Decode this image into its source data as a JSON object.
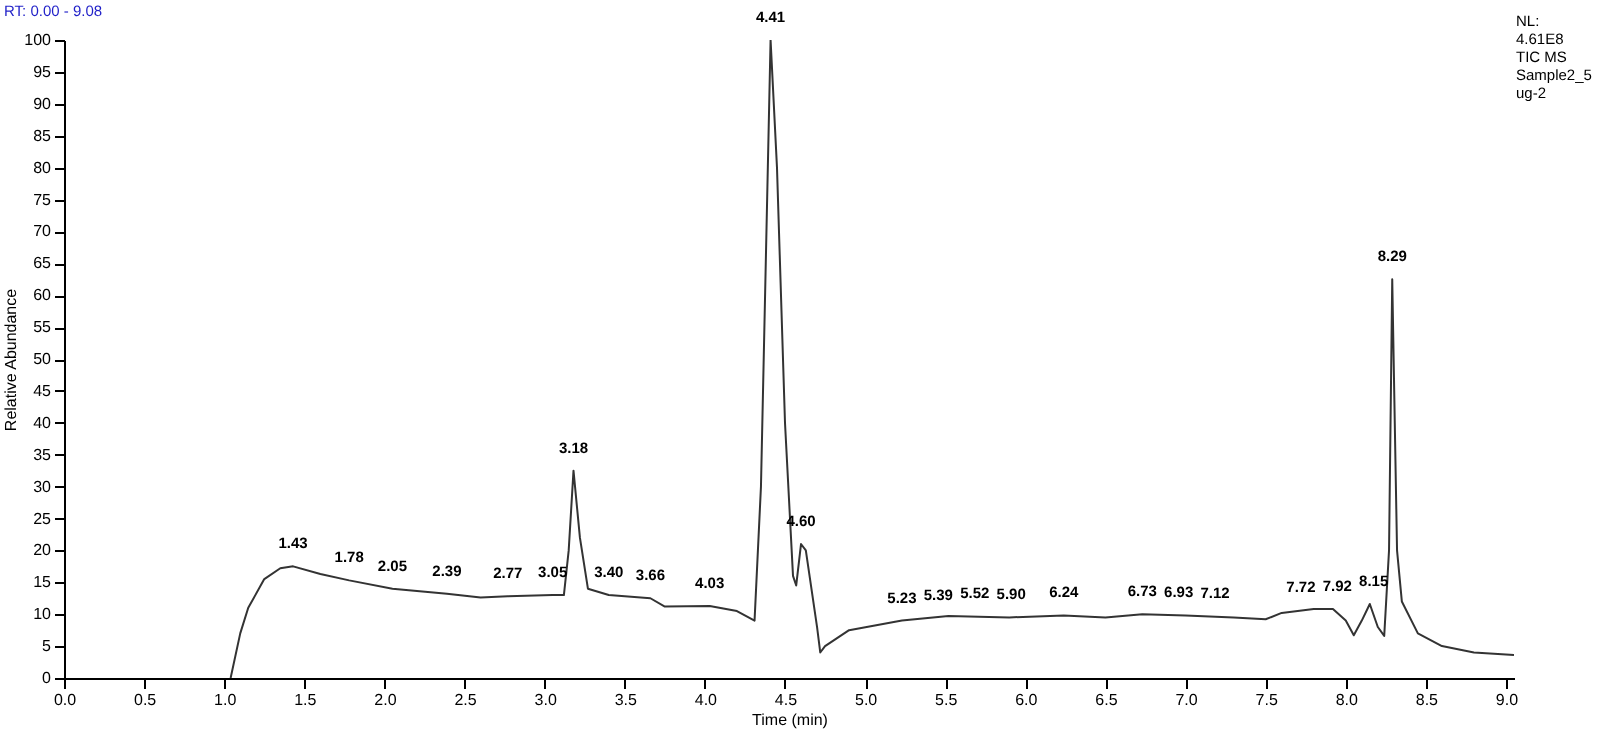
{
  "chart_data": {
    "type": "line",
    "xlabel": "Time (min)",
    "ylabel": "Relative Abundance",
    "x": [
      1.04,
      1.1,
      1.15,
      1.25,
      1.35,
      1.43,
      1.6,
      1.78,
      2.05,
      2.39,
      2.6,
      2.77,
      3.05,
      3.12,
      3.15,
      3.18,
      3.22,
      3.27,
      3.4,
      3.66,
      3.75,
      4.03,
      4.2,
      4.31,
      4.35,
      4.41,
      4.45,
      4.5,
      4.55,
      4.57,
      4.6,
      4.63,
      4.7,
      4.72,
      4.75,
      4.9,
      5.23,
      5.52,
      5.9,
      6.24,
      6.5,
      6.73,
      7.0,
      7.3,
      7.5,
      7.6,
      7.8,
      7.92,
      8.0,
      8.05,
      8.1,
      8.15,
      8.2,
      8.24,
      8.27,
      8.29,
      8.32,
      8.35,
      8.45,
      8.6,
      8.8,
      9.05
    ],
    "series": [
      {
        "color": "#333333",
        "values": [
          0,
          7,
          11,
          15.5,
          17.2,
          17.5,
          16.3,
          15.3,
          14,
          13.2,
          12.6,
          12.8,
          13,
          13,
          20,
          32.5,
          22,
          14,
          13,
          12.5,
          11.2,
          11.3,
          10.5,
          9,
          30,
          100,
          80,
          40,
          16,
          14.5,
          21,
          20,
          8,
          4,
          5,
          7.5,
          9,
          9.7,
          9.5,
          9.8,
          9.5,
          10,
          9.8,
          9.5,
          9.2,
          10.2,
          10.8,
          10.8,
          9,
          6.7,
          9,
          11.6,
          8,
          6.6,
          20,
          62.5,
          20,
          12,
          7,
          5,
          4,
          3.6
        ]
      }
    ],
    "xlim": [
      0,
      9.05
    ],
    "ylim": [
      0,
      100
    ],
    "xticks": [
      {
        "value": 0,
        "label": "0.0"
      },
      0.5,
      {
        "value": 1,
        "label": "1.0"
      },
      1.5,
      {
        "value": 2,
        "label": "2.0"
      },
      2.5,
      {
        "value": 3,
        "label": "3.0"
      },
      3.5,
      {
        "value": 4,
        "label": "4.0"
      },
      4.5,
      {
        "value": 5,
        "label": "5.0"
      },
      5.5,
      {
        "value": 6,
        "label": "6.0"
      },
      6.5,
      {
        "value": 7,
        "label": "7.0"
      },
      7.5,
      {
        "value": 8,
        "label": "8.0"
      },
      8.5,
      {
        "value": 9,
        "label": "9.0"
      }
    ],
    "yticks": [
      0,
      5,
      10,
      15,
      20,
      25,
      30,
      35,
      40,
      45,
      50,
      55,
      60,
      65,
      70,
      75,
      80,
      85,
      90,
      95,
      100
    ],
    "grid": false,
    "marker": "none",
    "line_style": "solid",
    "annotations": [
      "RT: 0.00 - 9.08",
      "NL:",
      "4.61E8",
      "TIC MS",
      "Sample2_5",
      "ug-2",
      {
        "text": "1.43",
        "x": 1.43,
        "y": 17.5
      },
      {
        "text": "1.78",
        "x": 1.78,
        "y": 15.3
      },
      {
        "text": "2.05",
        "x": 2.05,
        "y": 14
      },
      {
        "text": "2.39",
        "x": 2.39,
        "y": 13.2
      },
      {
        "text": "2.77",
        "x": 2.77,
        "y": 12.8
      },
      {
        "text": "3.05",
        "x": 3.05,
        "y": 13
      },
      {
        "text": "3.18",
        "x": 3.18,
        "y": 32.5
      },
      {
        "text": "3.40",
        "x": 3.4,
        "y": 13
      },
      {
        "text": "3.66",
        "x": 3.66,
        "y": 12.5
      },
      {
        "text": "4.03",
        "x": 4.03,
        "y": 11.3
      },
      {
        "text": "4.41",
        "x": 4.41,
        "y": 100
      },
      {
        "text": "4.60",
        "x": 4.6,
        "y": 21
      },
      {
        "text": "5.23",
        "x": 5.23,
        "y": 9
      },
      {
        "text": "5.39",
        "x": 5.39,
        "y": 9.4
      },
      {
        "text": "5.52",
        "x": 5.52,
        "y": 9.7
      },
      {
        "text": "5.90",
        "x": 5.9,
        "y": 9.5
      },
      {
        "text": "6.24",
        "x": 6.24,
        "y": 9.8
      },
      {
        "text": "6.73",
        "x": 6.73,
        "y": 10
      },
      {
        "text": "6.93",
        "x": 6.93,
        "y": 9.9
      },
      {
        "text": "7.12",
        "x": 7.12,
        "y": 9.7
      },
      {
        "text": "7.72",
        "x": 7.72,
        "y": 10.6
      },
      {
        "text": "7.92",
        "x": 7.92,
        "y": 10.8
      },
      {
        "text": "8.15",
        "x": 8.15,
        "y": 11.6
      },
      {
        "text": "8.29",
        "x": 8.29,
        "y": 62.5
      }
    ]
  }
}
